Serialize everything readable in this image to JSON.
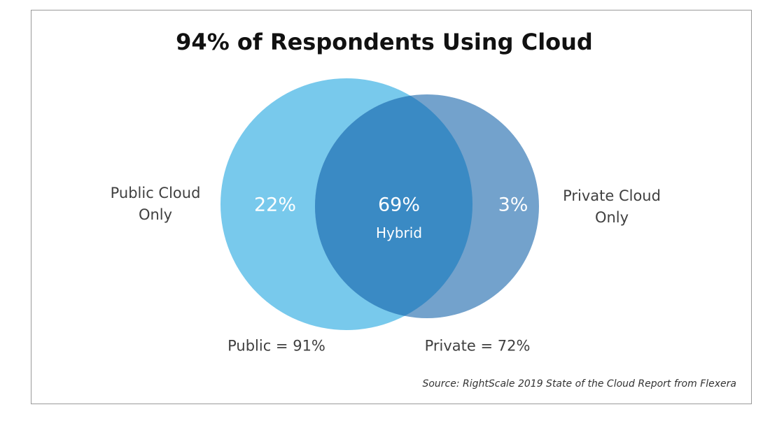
{
  "title": "94% of Respondents Using Cloud",
  "sets": {
    "public_only_label": [
      "Public Cloud",
      "Only"
    ],
    "private_only_label": [
      "Private Cloud",
      "Only"
    ],
    "public_only_value": "22%",
    "hybrid_value": "69%",
    "hybrid_label": "Hybrid",
    "private_only_value": "3%",
    "public_total": "Public = 91%",
    "private_total": "Private = 72%"
  },
  "colors": {
    "public": "#78C9EC",
    "private": "#73A2CC",
    "overlap": "#3A8AC4"
  },
  "source": "Source: RightScale 2019 State of the Cloud Report from Flexera"
}
